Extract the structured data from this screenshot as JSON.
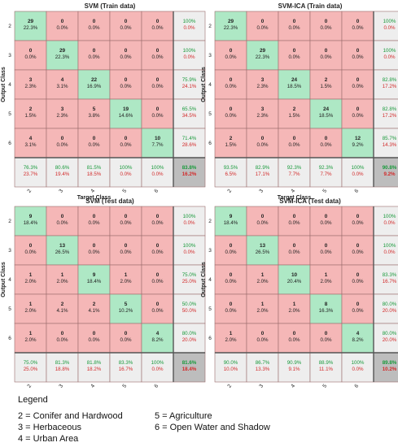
{
  "chart_data": [
    {
      "type": "heatmap",
      "title": "SVM (Train data)",
      "xlabel": "Target Class",
      "ylabel": "Output Class",
      "classes": [
        "2",
        "3",
        "4",
        "5",
        "6"
      ],
      "cells": [
        [
          [
            "29",
            "22.3%"
          ],
          [
            "0",
            "0.0%"
          ],
          [
            "0",
            "0.0%"
          ],
          [
            "0",
            "0.0%"
          ],
          [
            "0",
            "0.0%"
          ],
          [
            "100%",
            "0.0%"
          ]
        ],
        [
          [
            "0",
            "0.0%"
          ],
          [
            "29",
            "22.3%"
          ],
          [
            "0",
            "0.0%"
          ],
          [
            "0",
            "0.0%"
          ],
          [
            "0",
            "0.0%"
          ],
          [
            "100%",
            "0.0%"
          ]
        ],
        [
          [
            "3",
            "2.3%"
          ],
          [
            "4",
            "3.1%"
          ],
          [
            "22",
            "16.9%"
          ],
          [
            "0",
            "0.0%"
          ],
          [
            "0",
            "0.0%"
          ],
          [
            "75.9%",
            "24.1%"
          ]
        ],
        [
          [
            "2",
            "1.5%"
          ],
          [
            "3",
            "2.3%"
          ],
          [
            "5",
            "3.8%"
          ],
          [
            "19",
            "14.6%"
          ],
          [
            "0",
            "0.0%"
          ],
          [
            "65.5%",
            "34.5%"
          ]
        ],
        [
          [
            "4",
            "3.1%"
          ],
          [
            "0",
            "0.0%"
          ],
          [
            "0",
            "0.0%"
          ],
          [
            "0",
            "0.0%"
          ],
          [
            "10",
            "7.7%"
          ],
          [
            "71.4%",
            "28.6%"
          ]
        ],
        [
          [
            "76.3%",
            "23.7%"
          ],
          [
            "80.6%",
            "19.4%"
          ],
          [
            "81.5%",
            "18.5%"
          ],
          [
            "100%",
            "0.0%"
          ],
          [
            "100%",
            "0.0%"
          ],
          [
            "83.8%",
            "16.2%"
          ]
        ]
      ]
    },
    {
      "type": "heatmap",
      "title": "SVM-ICA (Train data)",
      "xlabel": "Target Class",
      "ylabel": "Output Class",
      "classes": [
        "2",
        "3",
        "4",
        "5",
        "6"
      ],
      "cells": [
        [
          [
            "29",
            "22.3%"
          ],
          [
            "0",
            "0.0%"
          ],
          [
            "0",
            "0.0%"
          ],
          [
            "0",
            "0.0%"
          ],
          [
            "0",
            "0.0%"
          ],
          [
            "100%",
            "0.0%"
          ]
        ],
        [
          [
            "0",
            "0.0%"
          ],
          [
            "29",
            "22.3%"
          ],
          [
            "0",
            "0.0%"
          ],
          [
            "0",
            "0.0%"
          ],
          [
            "0",
            "0.0%"
          ],
          [
            "100%",
            "0.0%"
          ]
        ],
        [
          [
            "0",
            "0.0%"
          ],
          [
            "3",
            "2.3%"
          ],
          [
            "24",
            "18.5%"
          ],
          [
            "2",
            "1.5%"
          ],
          [
            "0",
            "0.0%"
          ],
          [
            "82.8%",
            "17.2%"
          ]
        ],
        [
          [
            "0",
            "0.0%"
          ],
          [
            "3",
            "2.3%"
          ],
          [
            "2",
            "1.5%"
          ],
          [
            "24",
            "18.5%"
          ],
          [
            "0",
            "0.0%"
          ],
          [
            "82.8%",
            "17.2%"
          ]
        ],
        [
          [
            "2",
            "1.5%"
          ],
          [
            "0",
            "0.0%"
          ],
          [
            "0",
            "0.0%"
          ],
          [
            "0",
            "0.0%"
          ],
          [
            "12",
            "9.2%"
          ],
          [
            "85.7%",
            "14.3%"
          ]
        ],
        [
          [
            "93.5%",
            "6.5%"
          ],
          [
            "82.9%",
            "17.1%"
          ],
          [
            "92.3%",
            "7.7%"
          ],
          [
            "92.3%",
            "7.7%"
          ],
          [
            "100%",
            "0.0%"
          ],
          [
            "90.8%",
            "9.2%"
          ]
        ]
      ]
    },
    {
      "type": "heatmap",
      "title": "SVM (Test data)",
      "xlabel": "Target Class",
      "ylabel": "Output Class",
      "classes": [
        "2",
        "3",
        "4",
        "5",
        "6"
      ],
      "cells": [
        [
          [
            "9",
            "18.4%"
          ],
          [
            "0",
            "0.0%"
          ],
          [
            "0",
            "0.0%"
          ],
          [
            "0",
            "0.0%"
          ],
          [
            "0",
            "0.0%"
          ],
          [
            "100%",
            "0.0%"
          ]
        ],
        [
          [
            "0",
            "0.0%"
          ],
          [
            "13",
            "26.5%"
          ],
          [
            "0",
            "0.0%"
          ],
          [
            "0",
            "0.0%"
          ],
          [
            "0",
            "0.0%"
          ],
          [
            "100%",
            "0.0%"
          ]
        ],
        [
          [
            "1",
            "2.0%"
          ],
          [
            "1",
            "2.0%"
          ],
          [
            "9",
            "18.4%"
          ],
          [
            "1",
            "2.0%"
          ],
          [
            "0",
            "0.0%"
          ],
          [
            "75.0%",
            "25.0%"
          ]
        ],
        [
          [
            "1",
            "2.0%"
          ],
          [
            "2",
            "4.1%"
          ],
          [
            "2",
            "4.1%"
          ],
          [
            "5",
            "10.2%"
          ],
          [
            "0",
            "0.0%"
          ],
          [
            "50.0%",
            "50.0%"
          ]
        ],
        [
          [
            "1",
            "2.0%"
          ],
          [
            "0",
            "0.0%"
          ],
          [
            "0",
            "0.0%"
          ],
          [
            "0",
            "0.0%"
          ],
          [
            "4",
            "8.2%"
          ],
          [
            "80.0%",
            "20.0%"
          ]
        ],
        [
          [
            "75.0%",
            "25.0%"
          ],
          [
            "81.3%",
            "18.8%"
          ],
          [
            "81.8%",
            "18.2%"
          ],
          [
            "83.3%",
            "16.7%"
          ],
          [
            "100%",
            "0.0%"
          ],
          [
            "81.6%",
            "18.4%"
          ]
        ]
      ]
    },
    {
      "type": "heatmap",
      "title": "SVM-ICA (Test data)",
      "xlabel": "Target Class",
      "ylabel": "Output Class",
      "classes": [
        "2",
        "3",
        "4",
        "5",
        "6"
      ],
      "cells": [
        [
          [
            "9",
            "18.4%"
          ],
          [
            "0",
            "0.0%"
          ],
          [
            "0",
            "0.0%"
          ],
          [
            "0",
            "0.0%"
          ],
          [
            "0",
            "0.0%"
          ],
          [
            "100%",
            "0.0%"
          ]
        ],
        [
          [
            "0",
            "0.0%"
          ],
          [
            "13",
            "26.5%"
          ],
          [
            "0",
            "0.0%"
          ],
          [
            "0",
            "0.0%"
          ],
          [
            "0",
            "0.0%"
          ],
          [
            "100%",
            "0.0%"
          ]
        ],
        [
          [
            "0",
            "0.0%"
          ],
          [
            "1",
            "2.0%"
          ],
          [
            "10",
            "20.4%"
          ],
          [
            "1",
            "2.0%"
          ],
          [
            "0",
            "0.0%"
          ],
          [
            "83.3%",
            "16.7%"
          ]
        ],
        [
          [
            "0",
            "0.0%"
          ],
          [
            "1",
            "2.0%"
          ],
          [
            "1",
            "2.0%"
          ],
          [
            "8",
            "16.3%"
          ],
          [
            "0",
            "0.0%"
          ],
          [
            "80.0%",
            "20.0%"
          ]
        ],
        [
          [
            "1",
            "2.0%"
          ],
          [
            "0",
            "0.0%"
          ],
          [
            "0",
            "0.0%"
          ],
          [
            "0",
            "0.0%"
          ],
          [
            "4",
            "8.2%"
          ],
          [
            "80.0%",
            "20.0%"
          ]
        ],
        [
          [
            "90.0%",
            "10.0%"
          ],
          [
            "86.7%",
            "13.3%"
          ],
          [
            "90.9%",
            "9.1%"
          ],
          [
            "88.9%",
            "11.1%"
          ],
          [
            "100%",
            "0.0%"
          ],
          [
            "89.8%",
            "10.2%"
          ]
        ]
      ]
    }
  ],
  "legend": {
    "title": "Legend",
    "items": [
      "2 = Conifer and Hardwood",
      "3 = Herbaceous",
      "4 = Urban Area",
      "5 = Agriculture",
      "6 = Open Water and Shadow"
    ]
  },
  "colors": {
    "correct_cell": "#aee8c5",
    "error_cell": "#f5b7b7",
    "summary_cell": "#eeeeee",
    "total_cell": "#bdbdbd",
    "percent_green": "#1a9a3c",
    "percent_red": "#d22a2a",
    "grid_line": "#9b6d6d",
    "text": "#222222"
  }
}
